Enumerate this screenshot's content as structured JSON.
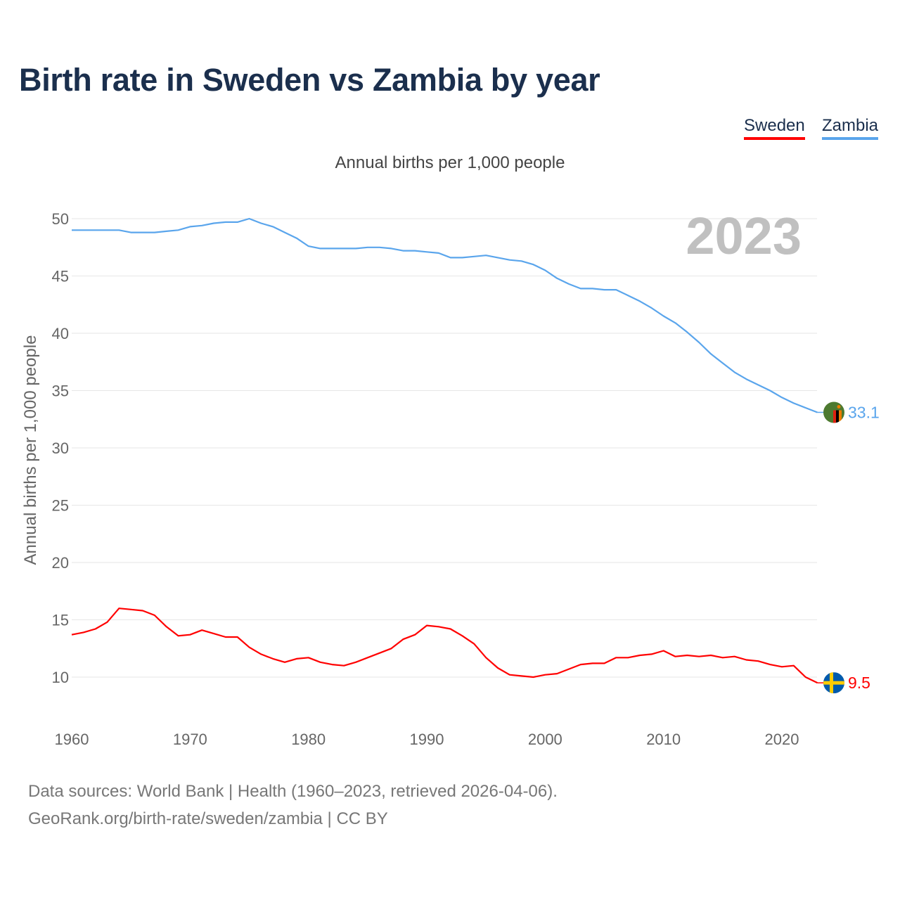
{
  "title": "Birth rate in Sweden vs Zambia by year",
  "legend": [
    {
      "name": "Sweden",
      "color": "#ff0000"
    },
    {
      "name": "Zambia",
      "color": "#5aa5ec"
    }
  ],
  "subtitle": "Annual births per 1,000 people",
  "year_label": "2023",
  "footer": {
    "line1": "Data sources: World Bank | Health (1960–2023, retrieved 2026-04-06).",
    "line2": "GeoRank.org/birth-rate/sweden/zambia | CC BY"
  },
  "chart_data": {
    "type": "line",
    "title": "Birth rate in Sweden vs Zambia by year",
    "xlabel": "",
    "ylabel": "Annual births per 1,000 people",
    "xlim": [
      1960,
      2023
    ],
    "ylim": [
      7,
      51
    ],
    "x_ticks": [
      1960,
      1970,
      1980,
      1990,
      2000,
      2010,
      2020
    ],
    "y_ticks": [
      10,
      15,
      20,
      25,
      30,
      35,
      40,
      45,
      50
    ],
    "grid": true,
    "legend_position": "top-right",
    "x_start": 1960,
    "series": [
      {
        "name": "Sweden",
        "color": "#ff0000",
        "end_label": "9.5",
        "values": [
          13.7,
          13.9,
          14.2,
          14.8,
          16.0,
          15.9,
          15.8,
          15.4,
          14.4,
          13.6,
          13.7,
          14.1,
          13.8,
          13.5,
          13.5,
          12.6,
          12.0,
          11.6,
          11.3,
          11.6,
          11.7,
          11.3,
          11.1,
          11.0,
          11.3,
          11.7,
          12.1,
          12.5,
          13.3,
          13.7,
          14.5,
          14.4,
          14.2,
          13.6,
          12.9,
          11.7,
          10.8,
          10.2,
          10.1,
          10.0,
          10.2,
          10.3,
          10.7,
          11.1,
          11.2,
          11.2,
          11.7,
          11.7,
          11.9,
          12.0,
          12.3,
          11.8,
          11.9,
          11.8,
          11.9,
          11.7,
          11.8,
          11.5,
          11.4,
          11.1,
          10.9,
          11.0,
          10.0,
          9.5
        ]
      },
      {
        "name": "Zambia",
        "color": "#5aa5ec",
        "end_label": "33.1",
        "values": [
          49.0,
          49.0,
          49.0,
          49.0,
          49.0,
          48.8,
          48.8,
          48.8,
          48.9,
          49.0,
          49.3,
          49.4,
          49.6,
          49.7,
          49.7,
          50.0,
          49.6,
          49.3,
          48.8,
          48.3,
          47.6,
          47.4,
          47.4,
          47.4,
          47.4,
          47.5,
          47.5,
          47.4,
          47.2,
          47.2,
          47.1,
          47.0,
          46.6,
          46.6,
          46.7,
          46.8,
          46.6,
          46.4,
          46.3,
          46.0,
          45.5,
          44.8,
          44.3,
          43.9,
          43.9,
          43.8,
          43.8,
          43.3,
          42.8,
          42.2,
          41.5,
          40.9,
          40.1,
          39.2,
          38.2,
          37.4,
          36.6,
          36.0,
          35.5,
          35.0,
          34.4,
          33.9,
          33.5,
          33.1
        ]
      }
    ]
  }
}
